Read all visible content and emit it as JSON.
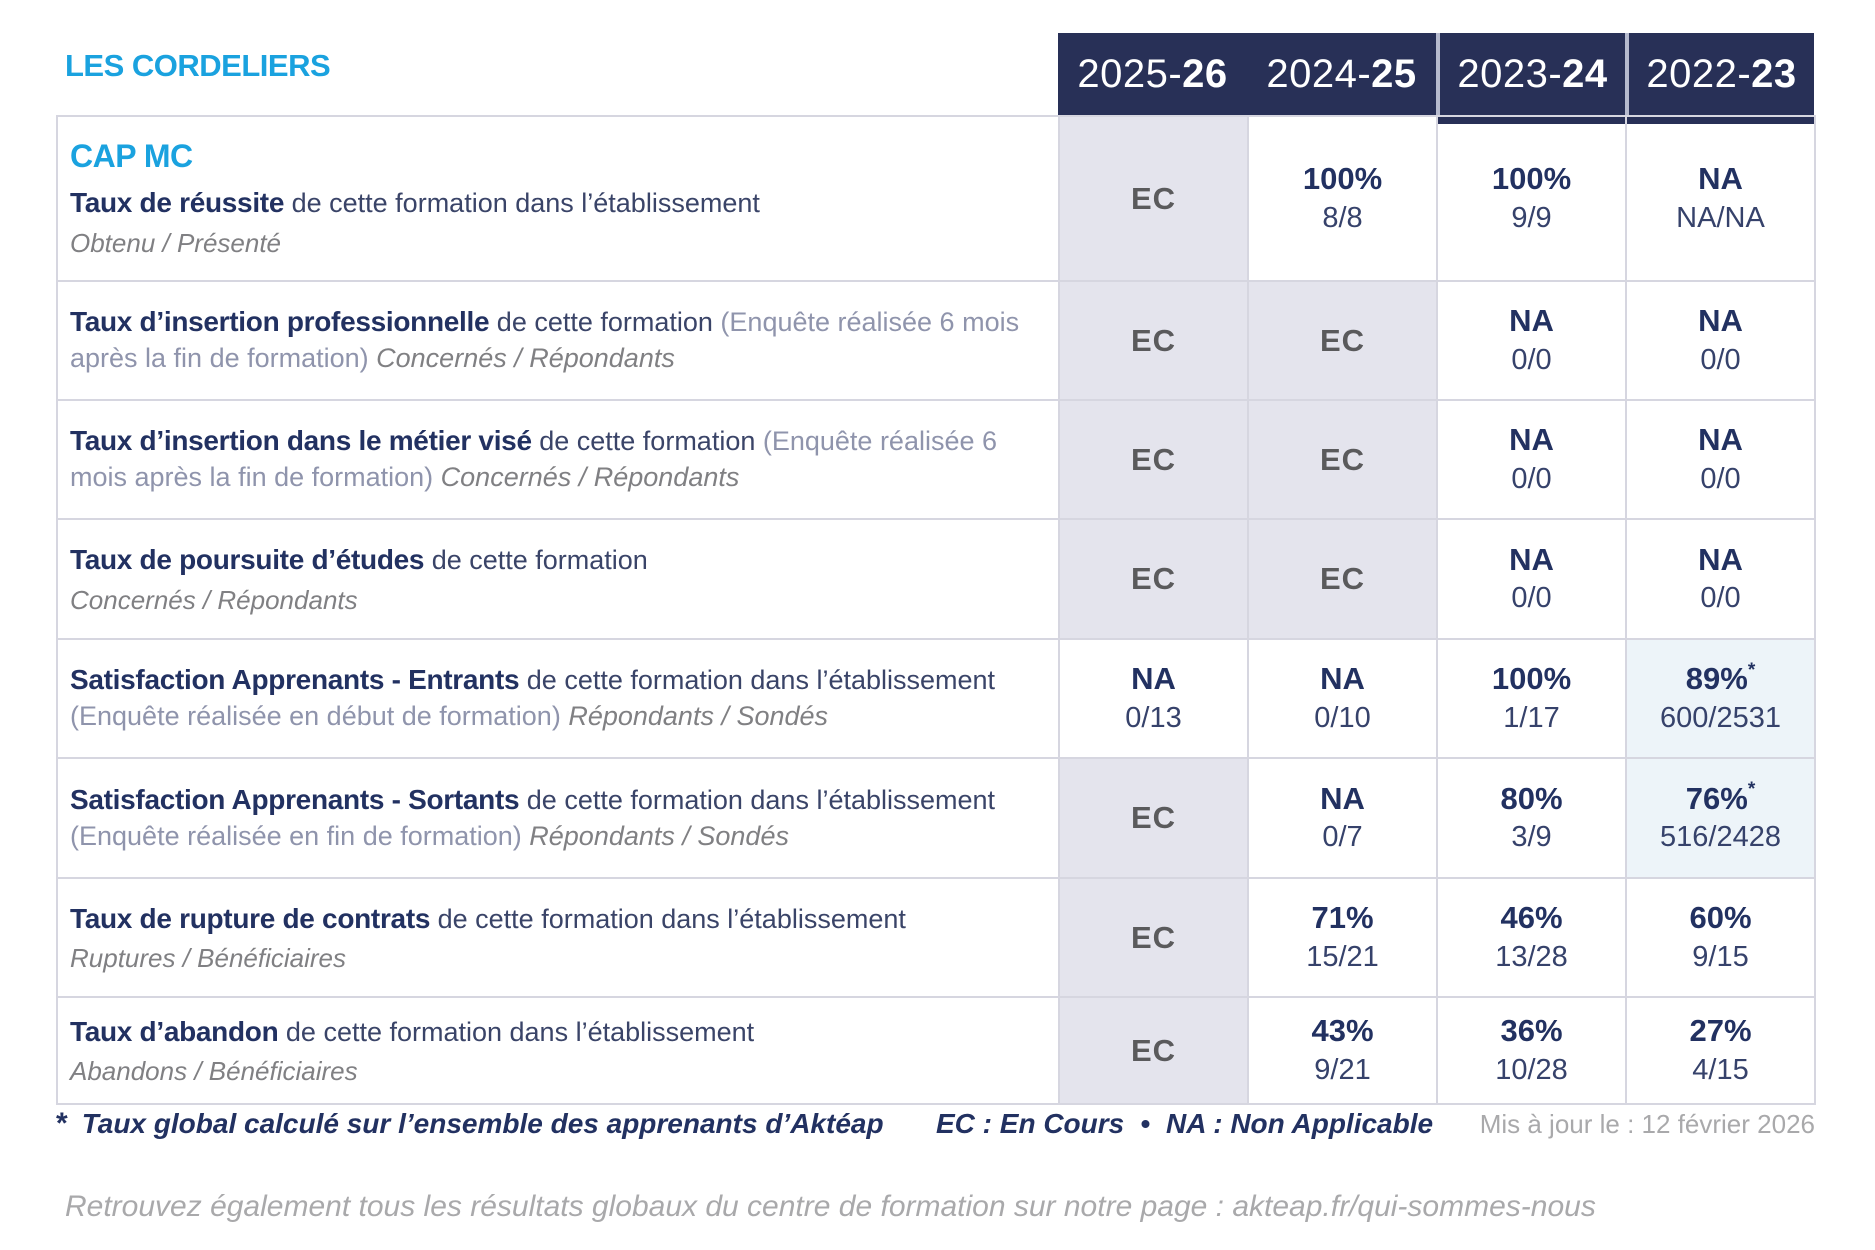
{
  "brand": "LES CORDELIERS",
  "program": "CAP MC",
  "columns": [
    {
      "pre": "2025-",
      "bold": "26"
    },
    {
      "pre": "2024-",
      "bold": "25"
    },
    {
      "pre": "2023-",
      "bold": "24"
    },
    {
      "pre": "2022-",
      "bold": "23"
    }
  ],
  "rows": [
    {
      "title": "Taux de réussite",
      "desc": " de cette formation dans l’établissement",
      "sub": "Obtenu / Présenté",
      "values": [
        {
          "main": "EC"
        },
        {
          "main": "100%",
          "frac": "8/8"
        },
        {
          "main": "100%",
          "frac": "9/9"
        },
        {
          "main": "NA",
          "frac": "NA/NA"
        }
      ]
    },
    {
      "title": "Taux d’insertion professionnelle",
      "desc": " de cette formation ",
      "paren": "(Enquête réalisée 6 mois après la fin de formation) ",
      "sub": "Concernés / Répondants",
      "values": [
        {
          "main": "EC"
        },
        {
          "main": "EC"
        },
        {
          "main": "NA",
          "frac": "0/0"
        },
        {
          "main": "NA",
          "frac": "0/0"
        }
      ]
    },
    {
      "title": "Taux d’insertion dans le métier visé",
      "desc": " de cette formation ",
      "paren": "(Enquête réalisée 6 mois après la fin de formation) ",
      "sub": "Concernés / Répondants",
      "values": [
        {
          "main": "EC"
        },
        {
          "main": "EC"
        },
        {
          "main": "NA",
          "frac": "0/0"
        },
        {
          "main": "NA",
          "frac": "0/0"
        }
      ]
    },
    {
      "title": "Taux de poursuite d’études",
      "desc": " de cette formation",
      "sub": "Concernés / Répondants",
      "values": [
        {
          "main": "EC"
        },
        {
          "main": "EC"
        },
        {
          "main": "NA",
          "frac": "0/0"
        },
        {
          "main": "NA",
          "frac": "0/0"
        }
      ]
    },
    {
      "title": "Satisfaction Apprenants - Entrants",
      "desc": " de cette formation dans l’établissement ",
      "paren": "(Enquête réalisée en début de formation) ",
      "sub": "Répondants / Sondés",
      "values": [
        {
          "main": "NA",
          "frac": "0/13"
        },
        {
          "main": "NA",
          "frac": "0/10"
        },
        {
          "main": "100%",
          "frac": "1/17"
        },
        {
          "main": "89%",
          "star": "*",
          "frac": "600/2531"
        }
      ]
    },
    {
      "title": "Satisfaction Apprenants - Sortants",
      "desc": " de cette formation dans l’établissement ",
      "paren": "(Enquête réalisée en fin de formation) ",
      "sub": "Répondants / Sondés",
      "values": [
        {
          "main": "EC"
        },
        {
          "main": "NA",
          "frac": "0/7"
        },
        {
          "main": "80%",
          "frac": "3/9"
        },
        {
          "main": "76%",
          "star": "*",
          "frac": "516/2428"
        }
      ]
    },
    {
      "title": "Taux de rupture de contrats",
      "desc": " de cette formation dans l’établissement",
      "sub": "Ruptures / Bénéficiaires",
      "values": [
        {
          "main": "EC"
        },
        {
          "main": "71%",
          "frac": "15/21"
        },
        {
          "main": "46%",
          "frac": "13/28"
        },
        {
          "main": "60%",
          "frac": "9/15"
        }
      ]
    },
    {
      "title": "Taux d’abandon",
      "desc": " de cette formation dans l’établissement",
      "sub": "Abandons / Bénéficiaires",
      "values": [
        {
          "main": "EC"
        },
        {
          "main": "43%",
          "frac": "9/21"
        },
        {
          "main": "36%",
          "frac": "10/28"
        },
        {
          "main": "27%",
          "frac": "4/15"
        }
      ]
    }
  ],
  "footer": {
    "star": "*",
    "footnote": "Taux global calculé sur l’ensemble des apprenants d’Aktéap",
    "legend_ec": "EC : En Cours",
    "bullet": "•",
    "legend_na": "NA : Non Applicable",
    "updated": "Mis à jour le : 12 février 2026",
    "bottom_note": "Retrouvez également tous les résultats globaux du centre de formation sur notre page : akteap.fr/qui-sommes-nous"
  },
  "colors": {
    "accent_cyan": "#1aa2df",
    "navy": "#283057",
    "ec_cell_bg": "#e4e4ed",
    "highlight_cell_bg": "#edf4f9"
  }
}
